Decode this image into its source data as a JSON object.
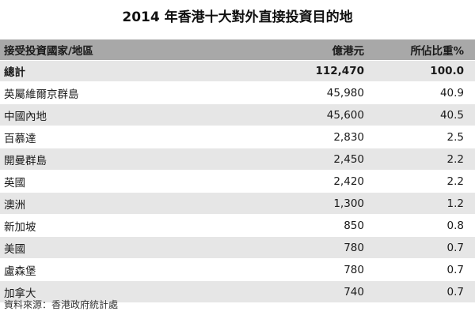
{
  "title": "2014 年香港十大對外直接投資目的地",
  "columns": [
    "接受投資國家/地區",
    "億港元",
    "所佔比重%"
  ],
  "total": {
    "name": "總計",
    "value": "112,470",
    "share": "100.0"
  },
  "rows": [
    {
      "name": "英屬維爾京群島",
      "value": "45,980",
      "share": "40.9"
    },
    {
      "name": "中國內地",
      "value": "45,600",
      "share": "40.5"
    },
    {
      "name": "百慕達",
      "value": "2,830",
      "share": "2.5"
    },
    {
      "name": "開曼群島",
      "value": "2,450",
      "share": "2.2"
    },
    {
      "name": "英國",
      "value": "2,420",
      "share": "2.2"
    },
    {
      "name": "澳洲",
      "value": "1,300",
      "share": "1.2"
    },
    {
      "name": "新加坡",
      "value": "850",
      "share": "0.8"
    },
    {
      "name": "美國",
      "value": "780",
      "share": "0.7"
    },
    {
      "name": "盧森堡",
      "value": "780",
      "share": "0.7"
    },
    {
      "name": "加拿大",
      "value": "740",
      "share": "0.7"
    }
  ],
  "source": "資料來源：香港政府統計處"
}
